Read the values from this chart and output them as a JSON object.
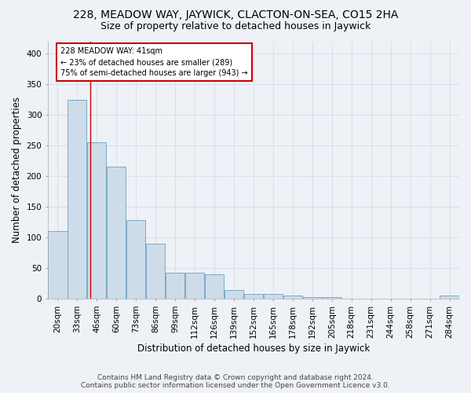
{
  "title": "228, MEADOW WAY, JAYWICK, CLACTON-ON-SEA, CO15 2HA",
  "subtitle": "Size of property relative to detached houses in Jaywick",
  "xlabel": "Distribution of detached houses by size in Jaywick",
  "ylabel": "Number of detached properties",
  "footer_line1": "Contains HM Land Registry data © Crown copyright and database right 2024.",
  "footer_line2": "Contains public sector information licensed under the Open Government Licence v3.0.",
  "bar_labels": [
    "20sqm",
    "33sqm",
    "46sqm",
    "60sqm",
    "73sqm",
    "86sqm",
    "99sqm",
    "112sqm",
    "126sqm",
    "139sqm",
    "152sqm",
    "165sqm",
    "178sqm",
    "192sqm",
    "205sqm",
    "218sqm",
    "231sqm",
    "244sqm",
    "258sqm",
    "271sqm",
    "284sqm"
  ],
  "bar_values": [
    111,
    325,
    255,
    215,
    128,
    90,
    43,
    43,
    40,
    15,
    8,
    8,
    6,
    3,
    3,
    0,
    0,
    0,
    0,
    0,
    5
  ],
  "bar_color": "#cddce8",
  "bar_edgecolor": "#7aaac8",
  "annotation_text": "228 MEADOW WAY: 41sqm\n← 23% of detached houses are smaller (289)\n75% of semi-detached houses are larger (943) →",
  "annotation_box_color": "#ffffff",
  "annotation_box_edgecolor": "#cc0000",
  "red_line_x": 1.65,
  "ylim": [
    0,
    420
  ],
  "yticks": [
    0,
    50,
    100,
    150,
    200,
    250,
    300,
    350,
    400
  ],
  "background_color": "#eef2f7",
  "grid_color": "#d8e0ea",
  "title_fontsize": 10,
  "subtitle_fontsize": 9,
  "axis_label_fontsize": 8.5,
  "tick_fontsize": 7.5,
  "footer_fontsize": 6.5
}
